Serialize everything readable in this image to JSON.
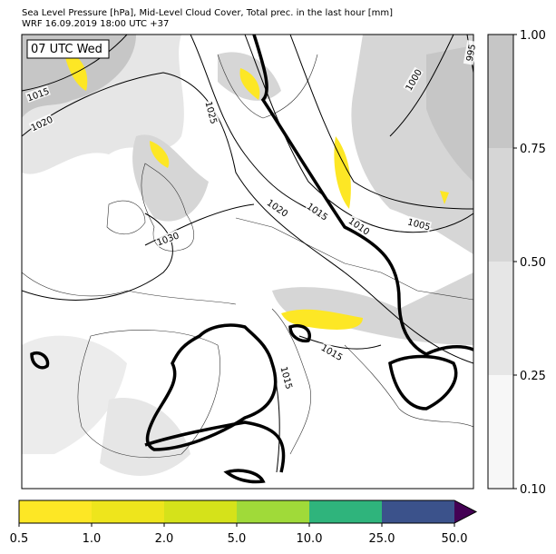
{
  "header": {
    "title": "Sea Level Pressure [hPa], Mid-Level Cloud Cover, Total prec. in the last hour [mm]",
    "subtitle": "WRF 16.09.2019 18:00 UTC +37"
  },
  "map": {
    "time_label": "07 UTC Wed",
    "isobar_labels": [
      1015,
      1020,
      1025,
      1030,
      1020,
      1015,
      1010,
      1005,
      1000,
      995,
      1015,
      1015
    ]
  },
  "cloud_colorbar": {
    "ticks": [
      {
        "value": 0.1,
        "label": "0.10"
      },
      {
        "value": 0.25,
        "label": "0.25"
      },
      {
        "value": 0.5,
        "label": "0.50"
      },
      {
        "value": 0.75,
        "label": "0.75"
      },
      {
        "value": 1,
        "label": "1.00"
      }
    ],
    "colors": [
      "#f7f7f7",
      "#e6e6e6",
      "#d6d6d6",
      "#c6c6c6"
    ]
  },
  "precip_colorbar": {
    "ticks": [
      0.5,
      {
        "value": 1,
        "label": "1.0"
      },
      {
        "value": 2,
        "label": "2.0"
      },
      {
        "value": 5,
        "label": "5.0"
      },
      {
        "value": 10,
        "label": "10.0"
      },
      {
        "value": 25,
        "label": "25.0"
      },
      {
        "value": 50,
        "label": "50.0"
      }
    ],
    "colors": [
      "#fde725",
      "#eee51c",
      "#d5e21a",
      "#a0da39",
      "#2fb47c",
      "#3b528b",
      "#440154"
    ]
  }
}
